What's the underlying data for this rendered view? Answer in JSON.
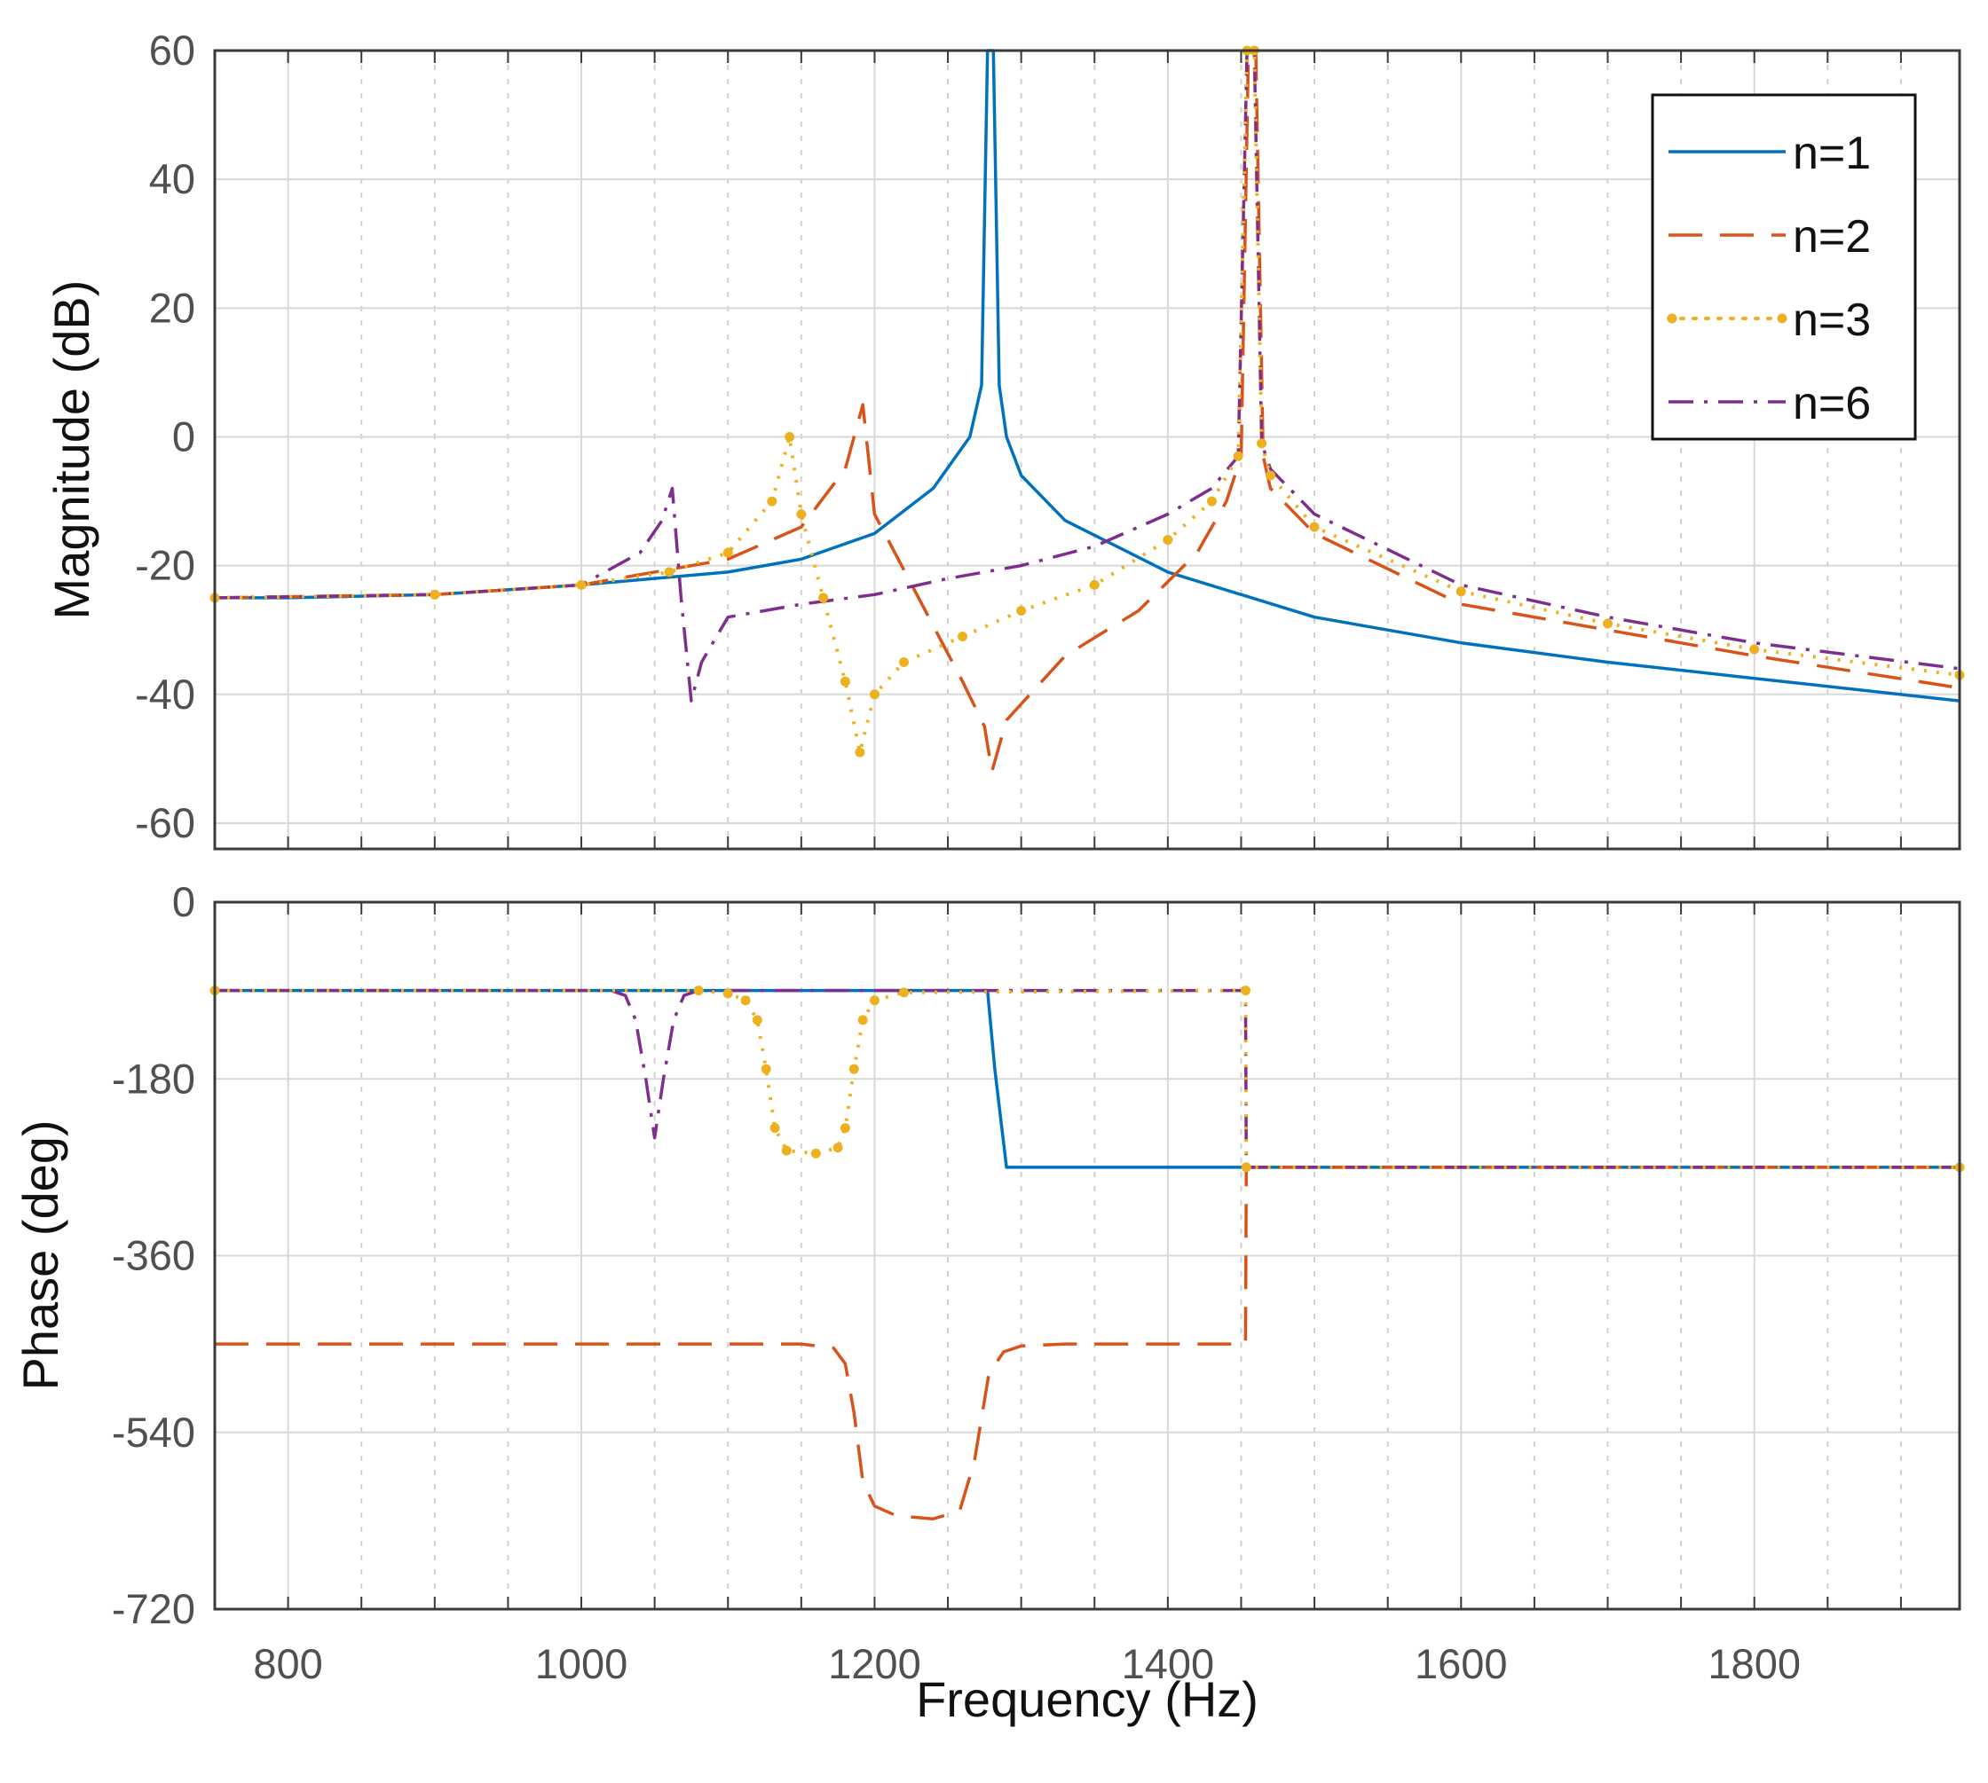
{
  "chart_data": [
    {
      "type": "line",
      "panel": "magnitude",
      "title": "",
      "xlabel": "",
      "ylabel": "Magnitude (dB)",
      "xlim": [
        750,
        1940
      ],
      "ylim": [
        -64,
        60
      ],
      "yticks": [
        60,
        40,
        20,
        0,
        -20,
        -40,
        -60
      ],
      "ytick_labels": [
        "60",
        "40",
        "20",
        "0",
        "-20",
        "-40",
        "-60"
      ],
      "grid": true,
      "legend": {
        "placement": "top-right",
        "entries": [
          "n=1",
          "n=2",
          "n=3",
          "n=6"
        ]
      },
      "series": [
        {
          "name": "n=1",
          "color": "#0072BD",
          "style": "solid",
          "x": [
            750,
            800,
            900,
            1000,
            1100,
            1150,
            1200,
            1240,
            1265,
            1273,
            1277,
            1281,
            1285,
            1290,
            1300,
            1330,
            1400,
            1500,
            1600,
            1700,
            1800,
            1940
          ],
          "y": [
            -25,
            -25,
            -24.5,
            -23,
            -21,
            -19,
            -15,
            -8,
            0,
            8,
            60,
            60,
            8,
            0,
            -6,
            -13,
            -21,
            -28,
            -32,
            -35,
            -37.5,
            -41
          ]
        },
        {
          "name": "n=2",
          "color": "#D95319",
          "style": "dashed",
          "x": [
            750,
            900,
            1000,
            1100,
            1150,
            1180,
            1192,
            1200,
            1230,
            1260,
            1275,
            1280,
            1290,
            1330,
            1380,
            1420,
            1440,
            1450,
            1455,
            1460,
            1465,
            1470,
            1500,
            1600,
            1700,
            1800,
            1940
          ],
          "y": [
            -25,
            -24.5,
            -23,
            -19,
            -14,
            -5,
            5,
            -12,
            -25,
            -38,
            -45,
            -52,
            -44,
            -34,
            -27,
            -18,
            -10,
            -3,
            60,
            60,
            -3,
            -8,
            -15,
            -26,
            -30,
            -34,
            -39
          ]
        },
        {
          "name": "n=3",
          "color": "#EDB120",
          "style": "dotted",
          "x": [
            750,
            900,
            1000,
            1060,
            1100,
            1130,
            1142,
            1150,
            1165,
            1180,
            1190,
            1200,
            1220,
            1260,
            1300,
            1350,
            1400,
            1430,
            1448,
            1454,
            1459,
            1464,
            1470,
            1500,
            1600,
            1700,
            1800,
            1940
          ],
          "y": [
            -25,
            -24.5,
            -23,
            -21,
            -18,
            -10,
            0,
            -12,
            -25,
            -38,
            -49,
            -40,
            -35,
            -31,
            -27,
            -23,
            -16,
            -10,
            -3,
            60,
            60,
            -1,
            -6,
            -14,
            -24,
            -29,
            -33,
            -37
          ]
        },
        {
          "name": "n=6",
          "color": "#7E2F8E",
          "style": "dashdot",
          "x": [
            750,
            900,
            1000,
            1040,
            1055,
            1062,
            1068,
            1075,
            1082,
            1100,
            1150,
            1200,
            1250,
            1300,
            1350,
            1400,
            1430,
            1448,
            1454,
            1459,
            1464,
            1470,
            1500,
            1600,
            1700,
            1800,
            1940
          ],
          "y": [
            -25,
            -24.5,
            -23,
            -18,
            -13,
            -8,
            -25,
            -41,
            -35,
            -28,
            -26,
            -24.5,
            -22,
            -20,
            -17,
            -12,
            -8,
            -3,
            60,
            60,
            -1,
            -5,
            -12,
            -23,
            -28,
            -32,
            -36
          ]
        }
      ]
    },
    {
      "type": "line",
      "panel": "phase",
      "title": "",
      "xlabel": "Frequency  (Hz)",
      "ylabel": "Phase (deg)",
      "xlim": [
        750,
        1940
      ],
      "ylim": [
        -720,
        0
      ],
      "yticks": [
        0,
        -180,
        -360,
        -540,
        -720
      ],
      "ytick_labels": [
        "0",
        "-180",
        "-360",
        "-540",
        "-720"
      ],
      "xticks": [
        800,
        1000,
        1200,
        1400,
        1600,
        1800
      ],
      "xtick_labels": [
        "800",
        "1000",
        "1200",
        "1400",
        "1600",
        "1800"
      ],
      "grid": true,
      "series": [
        {
          "name": "n=1",
          "color": "#0072BD",
          "style": "solid",
          "x": [
            750,
            1277,
            1282,
            1290,
            1940
          ],
          "y": [
            -90,
            -90,
            -170,
            -270,
            -270
          ]
        },
        {
          "name": "n=2",
          "color": "#D95319",
          "style": "dashed",
          "x": [
            750,
            1150,
            1172,
            1180,
            1186,
            1192,
            1200,
            1215,
            1240,
            1258,
            1268,
            1278,
            1288,
            1300,
            1330,
            1453,
            1453.5,
            1940
          ],
          "y": [
            -450,
            -450,
            -454,
            -470,
            -520,
            -590,
            -615,
            -625,
            -628,
            -620,
            -570,
            -480,
            -458,
            -452,
            -450,
            -450,
            -270,
            -270
          ]
        },
        {
          "name": "n=3",
          "color": "#EDB120",
          "style": "dotted",
          "x": [
            750,
            1080,
            1100,
            1112,
            1120,
            1126,
            1132,
            1140,
            1160,
            1175,
            1180,
            1186,
            1192,
            1200,
            1220,
            1453,
            1453.5,
            1940
          ],
          "y": [
            -90,
            -90,
            -93,
            -100,
            -120,
            -170,
            -230,
            -253,
            -256,
            -250,
            -230,
            -170,
            -120,
            -100,
            -92,
            -90,
            -270,
            -270
          ]
        },
        {
          "name": "n=6",
          "color": "#7E2F8E",
          "style": "dashdot",
          "x": [
            750,
            1020,
            1030,
            1037,
            1044,
            1050,
            1056,
            1063,
            1070,
            1080,
            1453,
            1453.5,
            1940
          ],
          "y": [
            -90,
            -90,
            -95,
            -120,
            -180,
            -240,
            -180,
            -120,
            -95,
            -90,
            -90,
            -270,
            -270
          ]
        }
      ]
    }
  ]
}
